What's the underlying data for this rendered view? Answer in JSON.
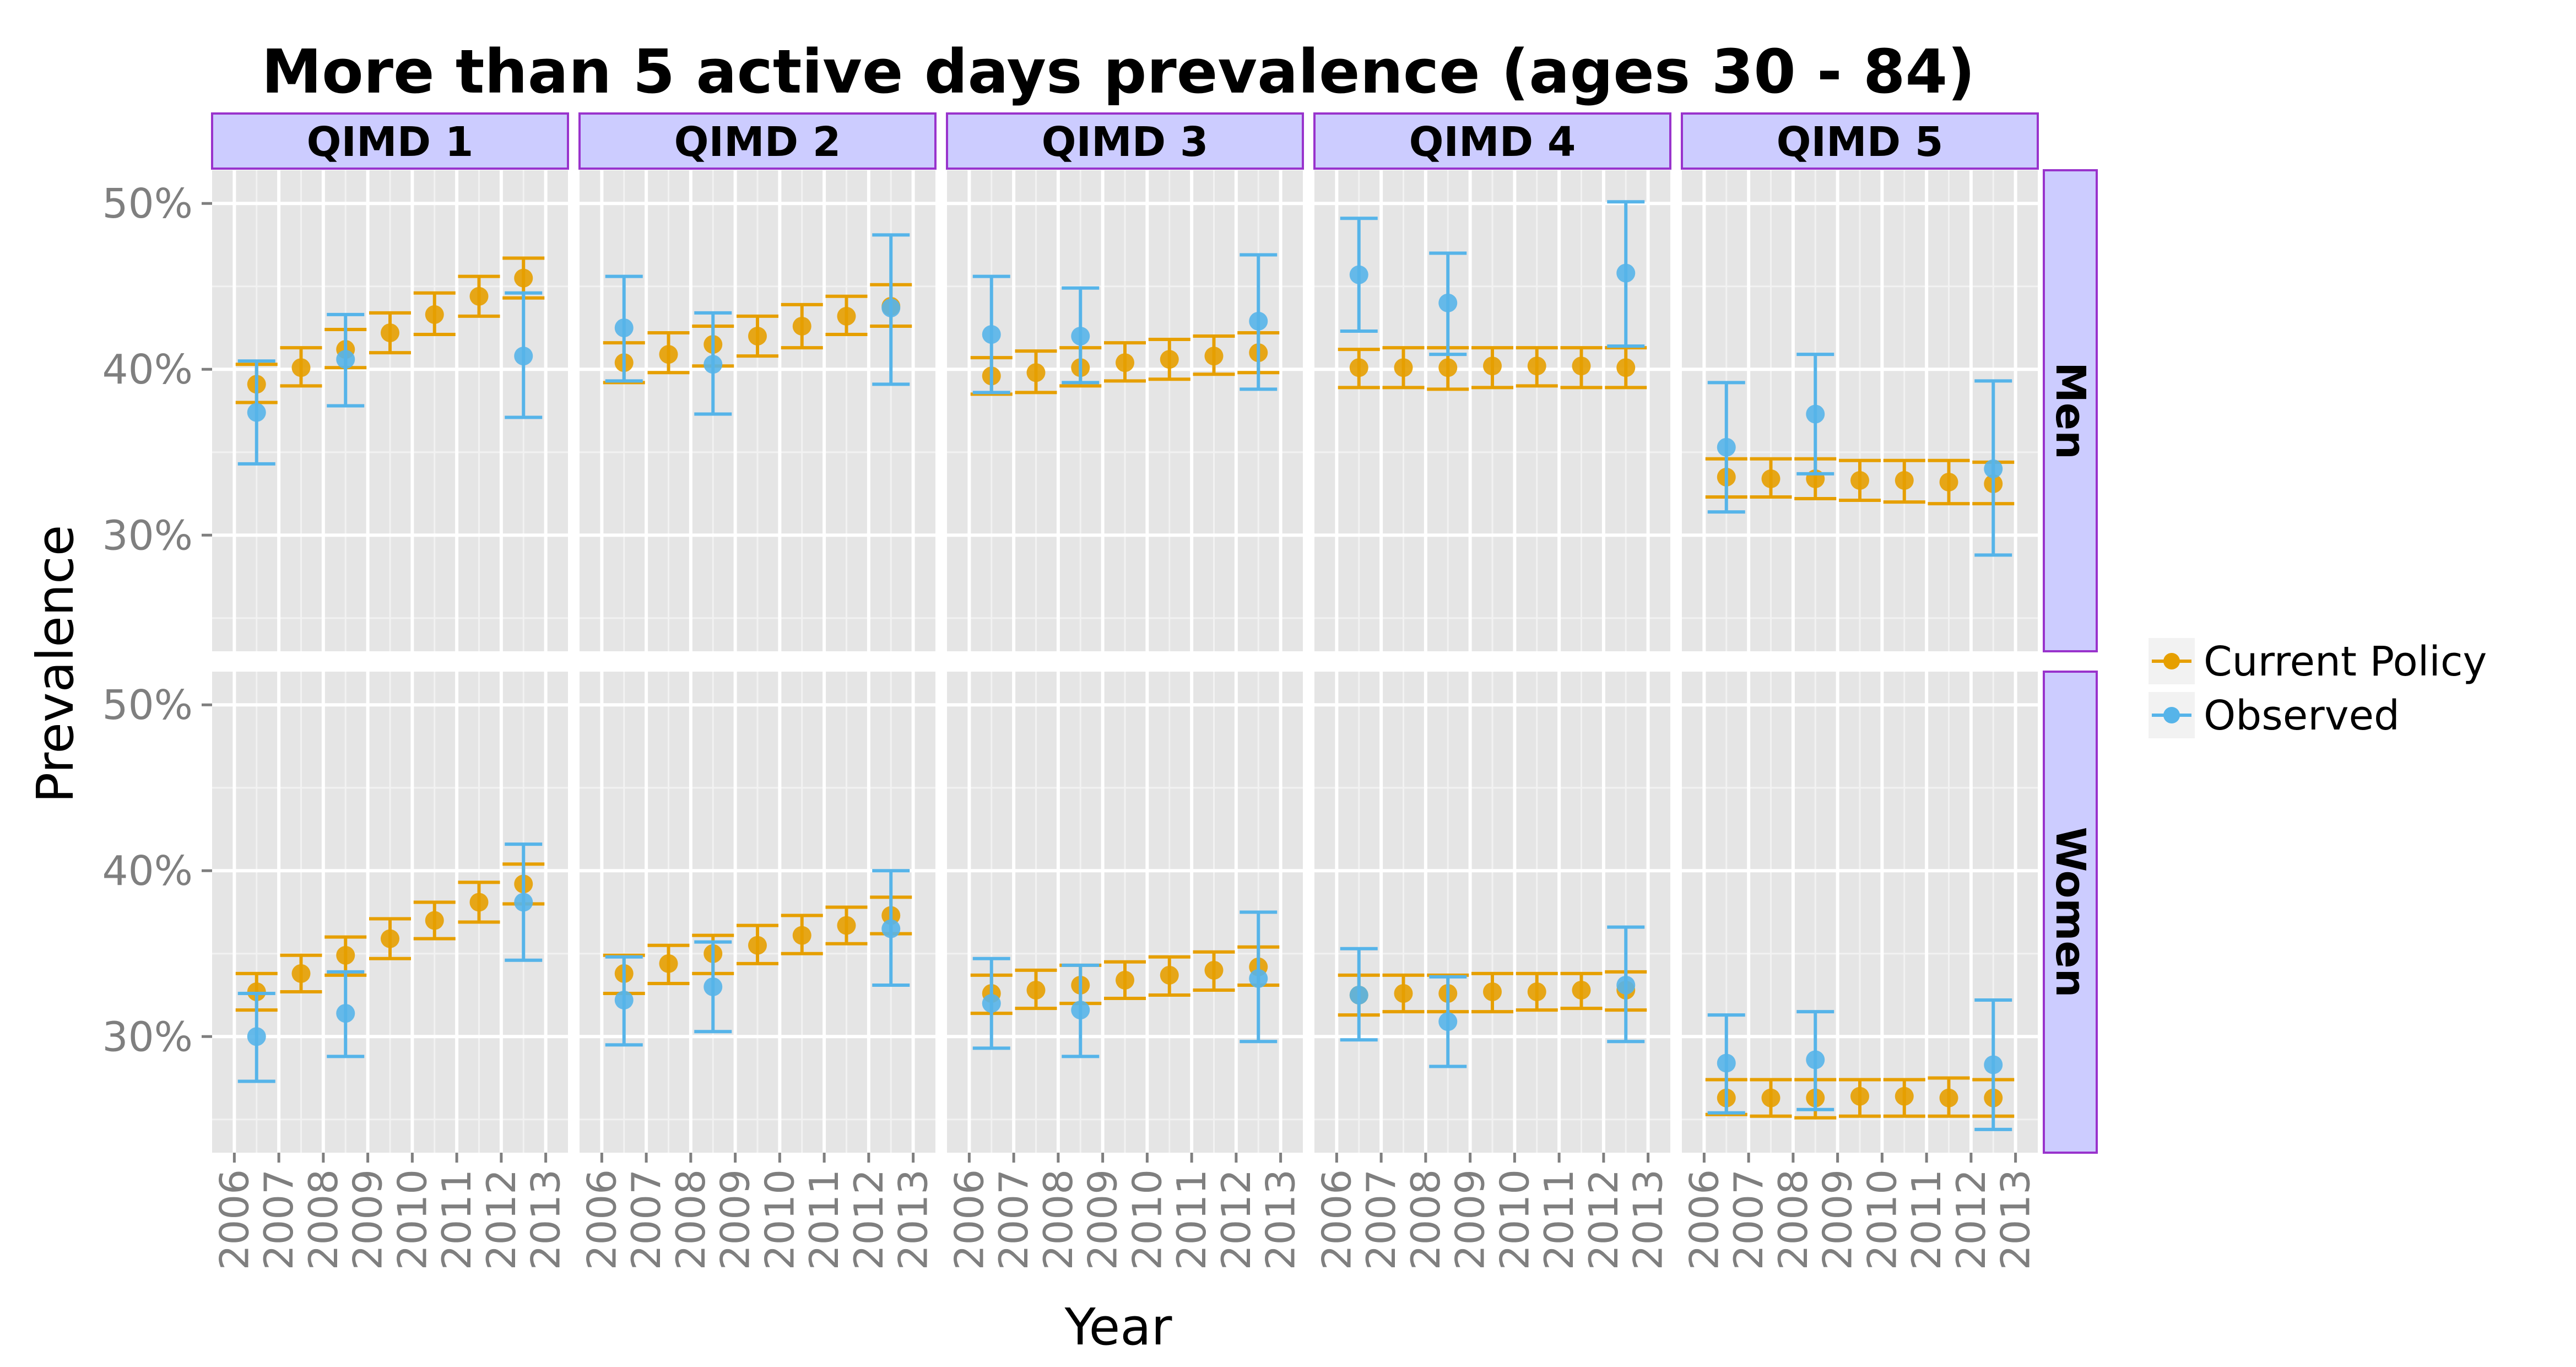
{
  "chart_data": {
    "type": "scatter",
    "title": "More than 5 active days prevalence (ages 30 - 84)",
    "xlabel": "Year",
    "ylabel": "Prevalence",
    "column_facets": [
      "QIMD 1",
      "QIMD 2",
      "QIMD 3",
      "QIMD 4",
      "QIMD 5"
    ],
    "row_facets": [
      "Men",
      "Women"
    ],
    "x_ticks": [
      "2006",
      "2007",
      "2008",
      "2009",
      "2010",
      "2011",
      "2012",
      "2013"
    ],
    "xlim": [
      2006,
      2013
    ],
    "y_ticks": [
      30,
      40,
      50
    ],
    "y_tick_labels": [
      "30%",
      "40%",
      "50%"
    ],
    "ylim": [
      23,
      52
    ],
    "grid": true,
    "legend_position": "right",
    "series": [
      {
        "name": "Current Policy",
        "color": "#E69F00"
      },
      {
        "name": "Observed",
        "color": "#56B4E9"
      }
    ],
    "panels": [
      {
        "column": "QIMD 1",
        "row": "Men",
        "current_policy": {
          "x": [
            2006.5,
            2007.5,
            2008.5,
            2009.5,
            2010.5,
            2011.5,
            2012.5
          ],
          "y": [
            39.1,
            40.1,
            41.2,
            42.2,
            43.3,
            44.4,
            45.5
          ],
          "lower": [
            38.0,
            39.0,
            40.1,
            41.0,
            42.1,
            43.2,
            44.3
          ],
          "upper": [
            40.3,
            41.3,
            42.4,
            43.4,
            44.6,
            45.6,
            46.7
          ]
        },
        "observed": {
          "x": [
            2006.5,
            2008.5,
            2012.5
          ],
          "y": [
            37.4,
            40.6,
            40.8
          ],
          "lower": [
            34.3,
            37.8,
            37.1
          ],
          "upper": [
            40.5,
            43.3,
            44.6
          ]
        }
      },
      {
        "column": "QIMD 2",
        "row": "Men",
        "current_policy": {
          "x": [
            2006.5,
            2007.5,
            2008.5,
            2009.5,
            2010.5,
            2011.5,
            2012.5
          ],
          "y": [
            40.4,
            40.9,
            41.5,
            42.0,
            42.6,
            43.2,
            43.8
          ],
          "lower": [
            39.2,
            39.8,
            40.2,
            40.8,
            41.3,
            42.1,
            42.6
          ],
          "upper": [
            41.6,
            42.2,
            42.6,
            43.2,
            43.9,
            44.4,
            45.1
          ]
        },
        "observed": {
          "x": [
            2006.5,
            2008.5,
            2012.5
          ],
          "y": [
            42.5,
            40.3,
            43.7
          ],
          "lower": [
            39.3,
            37.3,
            39.1
          ],
          "upper": [
            45.6,
            43.4,
            48.1
          ]
        }
      },
      {
        "column": "QIMD 3",
        "row": "Men",
        "current_policy": {
          "x": [
            2006.5,
            2007.5,
            2008.5,
            2009.5,
            2010.5,
            2011.5,
            2012.5
          ],
          "y": [
            39.6,
            39.8,
            40.1,
            40.4,
            40.6,
            40.8,
            41.0
          ],
          "lower": [
            38.5,
            38.6,
            39.0,
            39.3,
            39.4,
            39.7,
            39.8
          ],
          "upper": [
            40.7,
            41.1,
            41.3,
            41.6,
            41.8,
            42.0,
            42.2
          ]
        },
        "observed": {
          "x": [
            2006.5,
            2008.5,
            2012.5
          ],
          "y": [
            42.1,
            42.0,
            42.9
          ],
          "lower": [
            38.6,
            39.2,
            38.8
          ],
          "upper": [
            45.6,
            44.9,
            46.9
          ]
        }
      },
      {
        "column": "QIMD 4",
        "row": "Men",
        "current_policy": {
          "x": [
            2006.5,
            2007.5,
            2008.5,
            2009.5,
            2010.5,
            2011.5,
            2012.5
          ],
          "y": [
            40.1,
            40.1,
            40.1,
            40.2,
            40.2,
            40.2,
            40.1
          ],
          "lower": [
            38.9,
            38.9,
            38.8,
            38.9,
            39.0,
            38.9,
            38.9
          ],
          "upper": [
            41.2,
            41.3,
            41.3,
            41.3,
            41.3,
            41.3,
            41.3
          ]
        },
        "observed": {
          "x": [
            2006.5,
            2008.5,
            2012.5
          ],
          "y": [
            45.7,
            44.0,
            45.8
          ],
          "lower": [
            42.3,
            40.9,
            41.4
          ],
          "upper": [
            49.1,
            47.0,
            50.1
          ]
        }
      },
      {
        "column": "QIMD 5",
        "row": "Men",
        "current_policy": {
          "x": [
            2006.5,
            2007.5,
            2008.5,
            2009.5,
            2010.5,
            2011.5,
            2012.5
          ],
          "y": [
            33.5,
            33.4,
            33.4,
            33.3,
            33.3,
            33.2,
            33.1
          ],
          "lower": [
            32.3,
            32.3,
            32.2,
            32.1,
            32.0,
            31.9,
            31.9
          ],
          "upper": [
            34.6,
            34.6,
            34.6,
            34.5,
            34.5,
            34.5,
            34.4
          ]
        },
        "observed": {
          "x": [
            2006.5,
            2008.5,
            2012.5
          ],
          "y": [
            35.3,
            37.3,
            34.0
          ],
          "lower": [
            31.4,
            33.7,
            28.8
          ],
          "upper": [
            39.2,
            40.9,
            39.3
          ]
        }
      },
      {
        "column": "QIMD 1",
        "row": "Women",
        "current_policy": {
          "x": [
            2006.5,
            2007.5,
            2008.5,
            2009.5,
            2010.5,
            2011.5,
            2012.5
          ],
          "y": [
            32.7,
            33.8,
            34.9,
            35.9,
            37.0,
            38.1,
            39.2
          ],
          "lower": [
            31.6,
            32.7,
            33.7,
            34.7,
            35.9,
            36.9,
            38.0
          ],
          "upper": [
            33.8,
            34.9,
            36.0,
            37.1,
            38.1,
            39.3,
            40.4
          ]
        },
        "observed": {
          "x": [
            2006.5,
            2008.5,
            2012.5
          ],
          "y": [
            30.0,
            31.4,
            38.1
          ],
          "lower": [
            27.3,
            28.8,
            34.6
          ],
          "upper": [
            32.6,
            33.9,
            41.6
          ]
        }
      },
      {
        "column": "QIMD 2",
        "row": "Women",
        "current_policy": {
          "x": [
            2006.5,
            2007.5,
            2008.5,
            2009.5,
            2010.5,
            2011.5,
            2012.5
          ],
          "y": [
            33.8,
            34.4,
            35.0,
            35.5,
            36.1,
            36.7,
            37.3
          ],
          "lower": [
            32.6,
            33.2,
            33.8,
            34.4,
            35.0,
            35.6,
            36.2
          ],
          "upper": [
            34.9,
            35.5,
            36.1,
            36.7,
            37.3,
            37.8,
            38.4
          ]
        },
        "observed": {
          "x": [
            2006.5,
            2008.5,
            2012.5
          ],
          "y": [
            32.2,
            33.0,
            36.5
          ],
          "lower": [
            29.5,
            30.3,
            33.1
          ],
          "upper": [
            34.8,
            35.7,
            40.0
          ]
        }
      },
      {
        "column": "QIMD 3",
        "row": "Women",
        "current_policy": {
          "x": [
            2006.5,
            2007.5,
            2008.5,
            2009.5,
            2010.5,
            2011.5,
            2012.5
          ],
          "y": [
            32.6,
            32.8,
            33.1,
            33.4,
            33.7,
            34.0,
            34.2
          ],
          "lower": [
            31.4,
            31.7,
            32.0,
            32.3,
            32.5,
            32.8,
            33.1
          ],
          "upper": [
            33.7,
            34.0,
            34.3,
            34.5,
            34.8,
            35.1,
            35.4
          ]
        },
        "observed": {
          "x": [
            2006.5,
            2008.5,
            2012.5
          ],
          "y": [
            32.0,
            31.6,
            33.5
          ],
          "lower": [
            29.3,
            28.8,
            29.7
          ],
          "upper": [
            34.7,
            34.3,
            37.5
          ]
        }
      },
      {
        "column": "QIMD 4",
        "row": "Women",
        "current_policy": {
          "x": [
            2006.5,
            2007.5,
            2008.5,
            2009.5,
            2010.5,
            2011.5,
            2012.5
          ],
          "y": [
            32.5,
            32.6,
            32.6,
            32.7,
            32.7,
            32.8,
            32.8
          ],
          "lower": [
            31.3,
            31.5,
            31.5,
            31.5,
            31.6,
            31.7,
            31.6
          ],
          "upper": [
            33.7,
            33.7,
            33.7,
            33.8,
            33.8,
            33.8,
            33.9
          ]
        },
        "observed": {
          "x": [
            2006.5,
            2008.5,
            2012.5
          ],
          "y": [
            32.5,
            30.9,
            33.1
          ],
          "lower": [
            29.8,
            28.2,
            29.7
          ],
          "upper": [
            35.3,
            33.6,
            36.6
          ]
        }
      },
      {
        "column": "QIMD 5",
        "row": "Women",
        "current_policy": {
          "x": [
            2006.5,
            2007.5,
            2008.5,
            2009.5,
            2010.5,
            2011.5,
            2012.5
          ],
          "y": [
            26.3,
            26.3,
            26.3,
            26.4,
            26.4,
            26.3,
            26.3
          ],
          "lower": [
            25.3,
            25.2,
            25.1,
            25.2,
            25.2,
            25.2,
            25.2
          ],
          "upper": [
            27.4,
            27.4,
            27.4,
            27.4,
            27.4,
            27.5,
            27.4
          ]
        },
        "observed": {
          "x": [
            2006.5,
            2008.5,
            2012.5
          ],
          "y": [
            28.4,
            28.6,
            28.3
          ],
          "lower": [
            25.4,
            25.6,
            24.4
          ],
          "upper": [
            31.3,
            31.5,
            32.2
          ]
        }
      }
    ]
  }
}
